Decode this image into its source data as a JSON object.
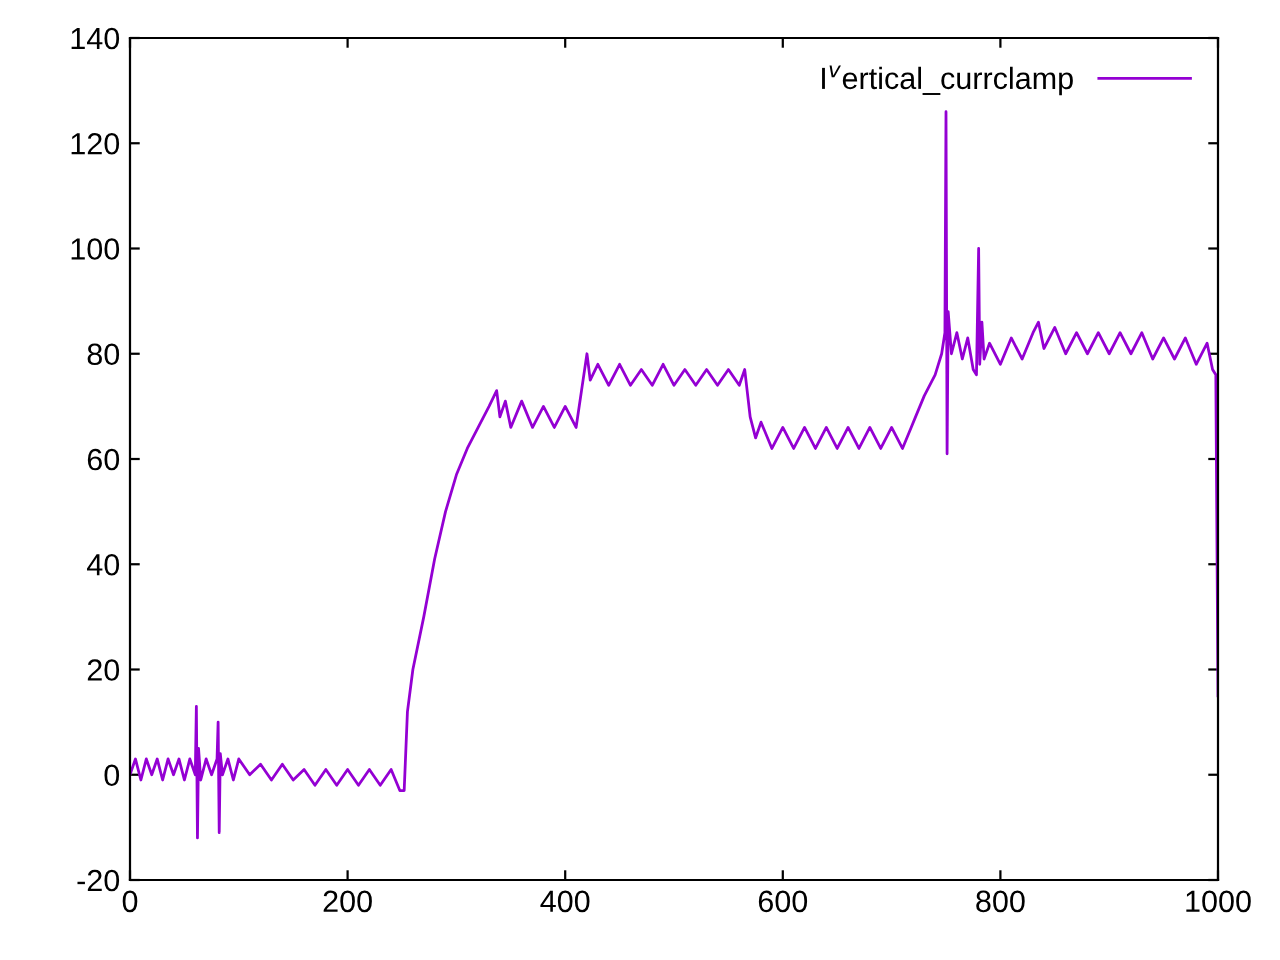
{
  "chart_data": {
    "type": "line",
    "x": [
      0,
      5,
      10,
      15,
      20,
      25,
      30,
      35,
      40,
      45,
      50,
      55,
      60,
      61,
      62,
      63,
      65,
      70,
      75,
      80,
      81,
      82,
      83,
      85,
      90,
      95,
      100,
      110,
      120,
      130,
      140,
      150,
      160,
      170,
      180,
      190,
      200,
      210,
      220,
      230,
      240,
      248,
      252,
      255,
      260,
      270,
      280,
      290,
      300,
      310,
      320,
      330,
      337,
      340,
      345,
      350,
      360,
      370,
      380,
      390,
      400,
      410,
      415,
      420,
      423,
      430,
      440,
      450,
      460,
      470,
      480,
      490,
      500,
      510,
      520,
      530,
      540,
      550,
      560,
      565,
      570,
      575,
      580,
      590,
      600,
      610,
      620,
      630,
      640,
      650,
      660,
      670,
      680,
      690,
      700,
      710,
      718,
      722,
      730,
      740,
      746,
      749,
      750,
      751,
      752,
      755,
      760,
      765,
      770,
      775,
      778,
      780,
      781,
      783,
      785,
      790,
      800,
      810,
      820,
      830,
      835,
      840,
      850,
      860,
      870,
      880,
      890,
      900,
      910,
      920,
      930,
      940,
      950,
      960,
      970,
      980,
      990,
      995,
      998,
      1000
    ],
    "series": [
      {
        "name": "I$^{v}$ertical_currclamp",
        "color": "#9400d3",
        "values": [
          0,
          3,
          -1,
          3,
          0,
          3,
          -1,
          3,
          0,
          3,
          -1,
          3,
          0,
          13,
          -12,
          5,
          -1,
          3,
          0,
          3,
          10,
          -11,
          4,
          0,
          3,
          -1,
          3,
          0,
          2,
          -1,
          2,
          -1,
          1,
          -2,
          1,
          -2,
          1,
          -2,
          1,
          -2,
          1,
          -3,
          -3,
          12,
          20,
          30,
          41,
          50,
          57,
          62,
          66,
          70,
          73,
          68,
          71,
          66,
          71,
          66,
          70,
          66,
          70,
          66,
          73,
          80,
          75,
          78,
          74,
          78,
          74,
          77,
          74,
          78,
          74,
          77,
          74,
          77,
          74,
          77,
          74,
          77,
          68,
          64,
          67,
          62,
          66,
          62,
          66,
          62,
          66,
          62,
          66,
          62,
          66,
          62,
          66,
          62,
          66,
          68,
          72,
          76,
          80,
          84,
          126,
          61,
          88,
          80,
          84,
          79,
          83,
          77,
          76,
          100,
          78,
          86,
          79,
          82,
          78,
          83,
          79,
          84,
          86,
          81,
          85,
          80,
          84,
          80,
          84,
          80,
          84,
          80,
          84,
          79,
          83,
          79,
          83,
          78,
          82,
          77,
          76,
          15
        ]
      }
    ],
    "xlim": [
      0,
      1000
    ],
    "ylim": [
      -20,
      140
    ],
    "xticks": [
      0,
      200,
      400,
      600,
      800,
      1000
    ],
    "yticks": [
      -20,
      0,
      20,
      40,
      60,
      80,
      100,
      120,
      140
    ],
    "grid": false,
    "legend": "top right",
    "marker": "none",
    "line_style": "solid"
  }
}
